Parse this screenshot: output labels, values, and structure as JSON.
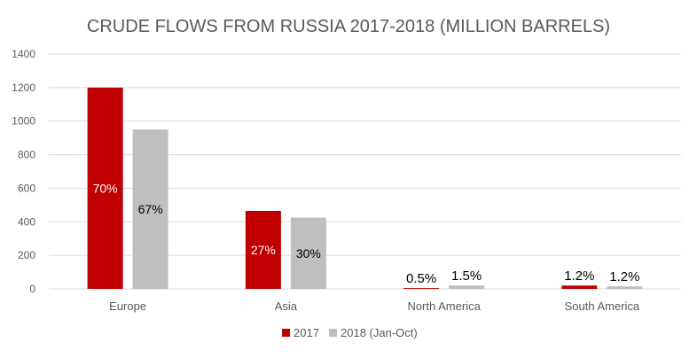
{
  "chart_data": {
    "type": "bar",
    "title": "CRUDE FLOWS FROM RUSSIA 2017-2018 (MILLION BARRELS)",
    "categories": [
      "Europe",
      "Asia",
      "North America",
      "South America"
    ],
    "series": [
      {
        "name": "2017",
        "color": "#c00000",
        "values": [
          1200,
          465,
          5,
          20
        ],
        "labels": [
          "70%",
          "27%",
          "0.5%",
          "1.2%"
        ]
      },
      {
        "name": "2018 (Jan-Oct)",
        "color": "#bfbfbf",
        "values": [
          950,
          425,
          20,
          15
        ],
        "labels": [
          "67%",
          "30%",
          "1.5%",
          "1.2%"
        ]
      }
    ],
    "ylim": [
      0,
      1400
    ],
    "yticks": [
      0,
      200,
      400,
      600,
      800,
      1000,
      1200,
      1400
    ],
    "grid": true,
    "legend": "bottom"
  }
}
